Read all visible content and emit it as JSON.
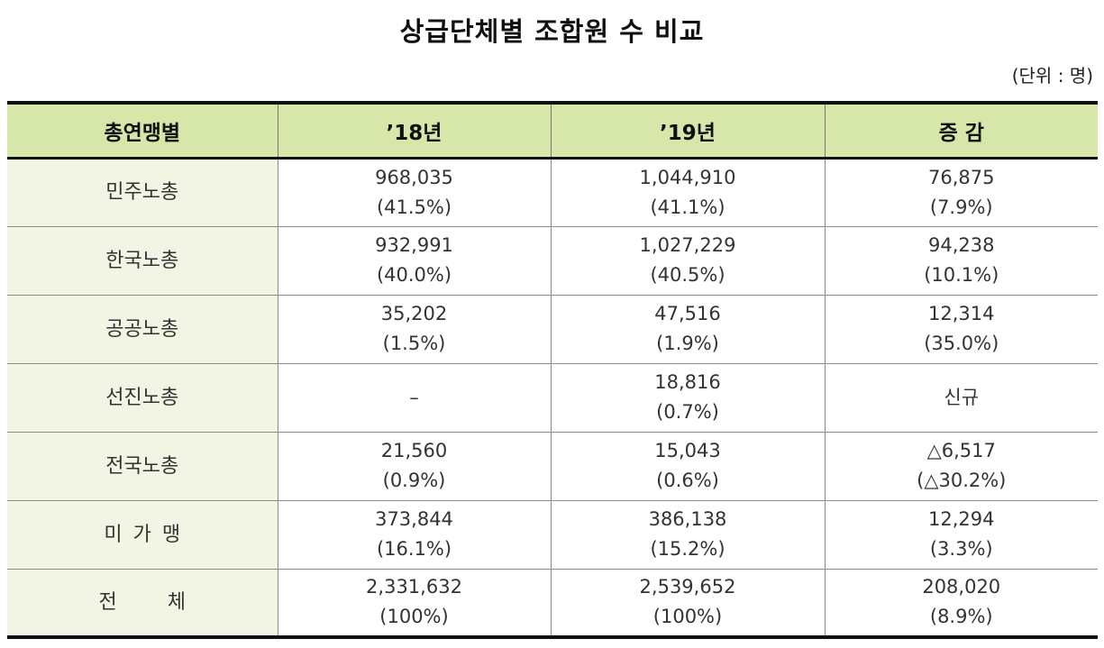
{
  "title": "상급단체별 조합원 수 비교",
  "unit": "(단위 : 명)",
  "columns": [
    "총연맹별",
    "’18년",
    "’19년",
    "증 감"
  ],
  "rows": [
    {
      "name": "민주노총",
      "y18": "968,035",
      "y18_pct": "(41.5%)",
      "y19": "1,044,910",
      "y19_pct": "(41.1%)",
      "diff": "76,875",
      "diff_pct": "(7.9%)"
    },
    {
      "name": "한국노총",
      "y18": "932,991",
      "y18_pct": "(40.0%)",
      "y19": "1,027,229",
      "y19_pct": "(40.5%)",
      "diff": "94,238",
      "diff_pct": "(10.1%)"
    },
    {
      "name": "공공노총",
      "y18": "35,202",
      "y18_pct": "(1.5%)",
      "y19": "47,516",
      "y19_pct": "(1.9%)",
      "diff": "12,314",
      "diff_pct": "(35.0%)"
    },
    {
      "name": "선진노총",
      "y18": "–",
      "y18_pct": "",
      "y19": "18,816",
      "y19_pct": "(0.7%)",
      "diff": "신규",
      "diff_pct": ""
    },
    {
      "name": "전국노총",
      "y18": "21,560",
      "y18_pct": "(0.9%)",
      "y19": "15,043",
      "y19_pct": "(0.6%)",
      "diff": "△6,517",
      "diff_pct": "(△30.2%)"
    },
    {
      "name": "미가맹",
      "y18": "373,844",
      "y18_pct": "(16.1%)",
      "y19": "386,138",
      "y19_pct": "(15.2%)",
      "diff": "12,294",
      "diff_pct": "(3.3%)"
    },
    {
      "name": "전체",
      "y18": "2,331,632",
      "y18_pct": "(100%)",
      "y19": "2,539,652",
      "y19_pct": "(100%)",
      "diff": "208,020",
      "diff_pct": "(8.9%)"
    }
  ],
  "colors": {
    "header_bg": "#d6e7a9",
    "label_bg": "#f2f4e4",
    "rule": "#111111"
  }
}
